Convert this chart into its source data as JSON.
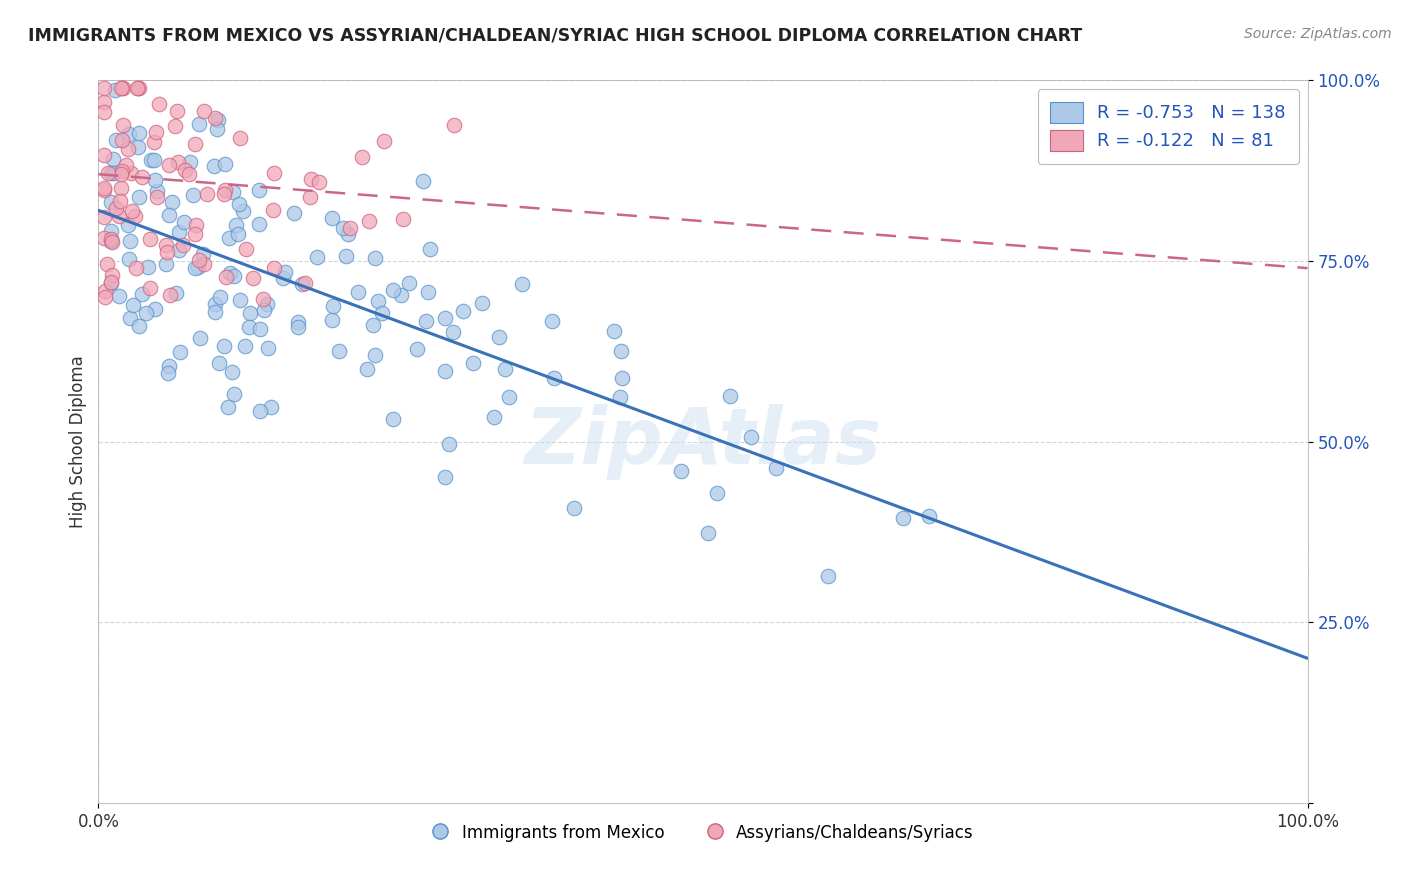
{
  "title": "IMMIGRANTS FROM MEXICO VS ASSYRIAN/CHALDEAN/SYRIAC HIGH SCHOOL DIPLOMA CORRELATION CHART",
  "source": "Source: ZipAtlas.com",
  "ylabel": "High School Diploma",
  "legend_label1": "Immigrants from Mexico",
  "legend_label2": "Assyrians/Chaldeans/Syriacs",
  "R1": -0.753,
  "N1": 138,
  "R2": -0.122,
  "N2": 81,
  "color_blue": "#adc9e8",
  "color_blue_edge": "#5591cc",
  "color_blue_line": "#3a72b8",
  "color_pink": "#f0a8b8",
  "color_pink_edge": "#d06080",
  "color_pink_line": "#cc6688",
  "bg_color": "#ffffff",
  "grid_color": "#cccccc",
  "title_color": "#222222",
  "legend_R_color": "#cc3333",
  "legend_N_color": "#2255aa",
  "watermark": "ZipAtlas",
  "xlim": [
    0.0,
    1.0
  ],
  "ylim": [
    0.0,
    1.0
  ],
  "yticks": [
    0.0,
    0.25,
    0.5,
    0.75,
    1.0
  ],
  "ytick_labels": [
    "",
    "25.0%",
    "50.0%",
    "75.0%",
    "100.0%"
  ],
  "xtick_labels": [
    "0.0%",
    "100.0%"
  ],
  "blue_intercept": 0.82,
  "blue_slope": -0.62,
  "pink_intercept": 0.87,
  "pink_slope": -0.13
}
